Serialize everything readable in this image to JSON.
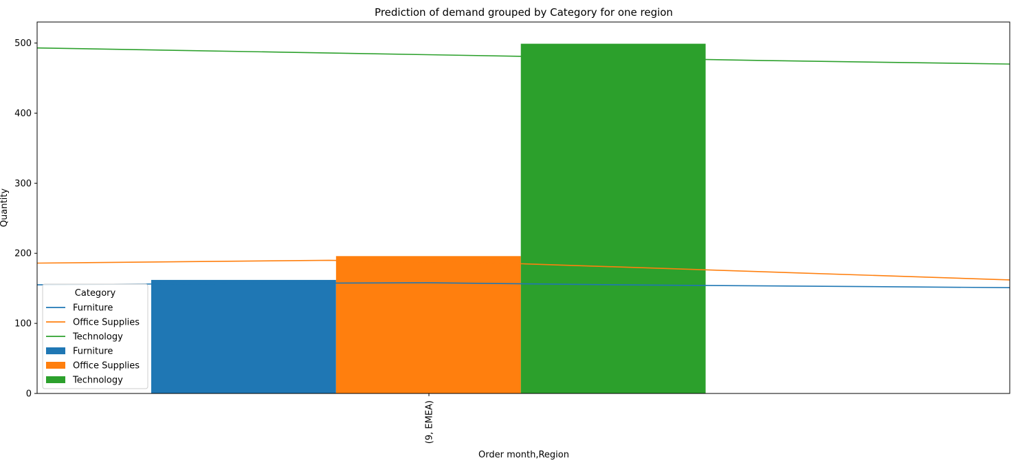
{
  "chart_data": {
    "type": "bar",
    "title": "Prediction of demand grouped by Category for one region",
    "xlabel": "Order month,Region",
    "ylabel": "Quantity",
    "ylim": [
      0,
      530
    ],
    "yticks": [
      0,
      100,
      200,
      300,
      400,
      500
    ],
    "categories": [
      "(9, EMEA)"
    ],
    "bar_series": [
      {
        "name": "Furniture",
        "values": [
          162
        ],
        "color": "#1f77b4"
      },
      {
        "name": "Office Supplies",
        "values": [
          196
        ],
        "color": "#ff7f0e"
      },
      {
        "name": "Technology",
        "values": [
          499
        ],
        "color": "#2ca02c"
      }
    ],
    "line_series": [
      {
        "name": "Furniture",
        "color": "#1f77b4",
        "x": [
          0,
          0.2,
          0.4,
          0.6,
          1.0
        ],
        "values": [
          155,
          157,
          158,
          155,
          151
        ]
      },
      {
        "name": "Office Supplies",
        "color": "#ff7f0e",
        "x": [
          0,
          0.15,
          0.3,
          0.5,
          1.0
        ],
        "values": [
          186,
          188,
          190,
          185,
          162
        ]
      },
      {
        "name": "Technology",
        "color": "#2ca02c",
        "x": [
          0,
          0.25,
          0.5,
          0.75,
          1.0
        ],
        "values": [
          493,
          487,
          481,
          475,
          470
        ]
      }
    ],
    "legend": {
      "title": "Category",
      "placement": "lower-left",
      "entries": [
        {
          "label": "Furniture",
          "kind": "line",
          "color": "#1f77b4"
        },
        {
          "label": "Office Supplies",
          "kind": "line",
          "color": "#ff7f0e"
        },
        {
          "label": "Technology",
          "kind": "line",
          "color": "#2ca02c"
        },
        {
          "label": "Furniture",
          "kind": "patch",
          "color": "#1f77b4"
        },
        {
          "label": "Office Supplies",
          "kind": "patch",
          "color": "#ff7f0e"
        },
        {
          "label": "Technology",
          "kind": "patch",
          "color": "#2ca02c"
        }
      ]
    },
    "grid": false
  }
}
